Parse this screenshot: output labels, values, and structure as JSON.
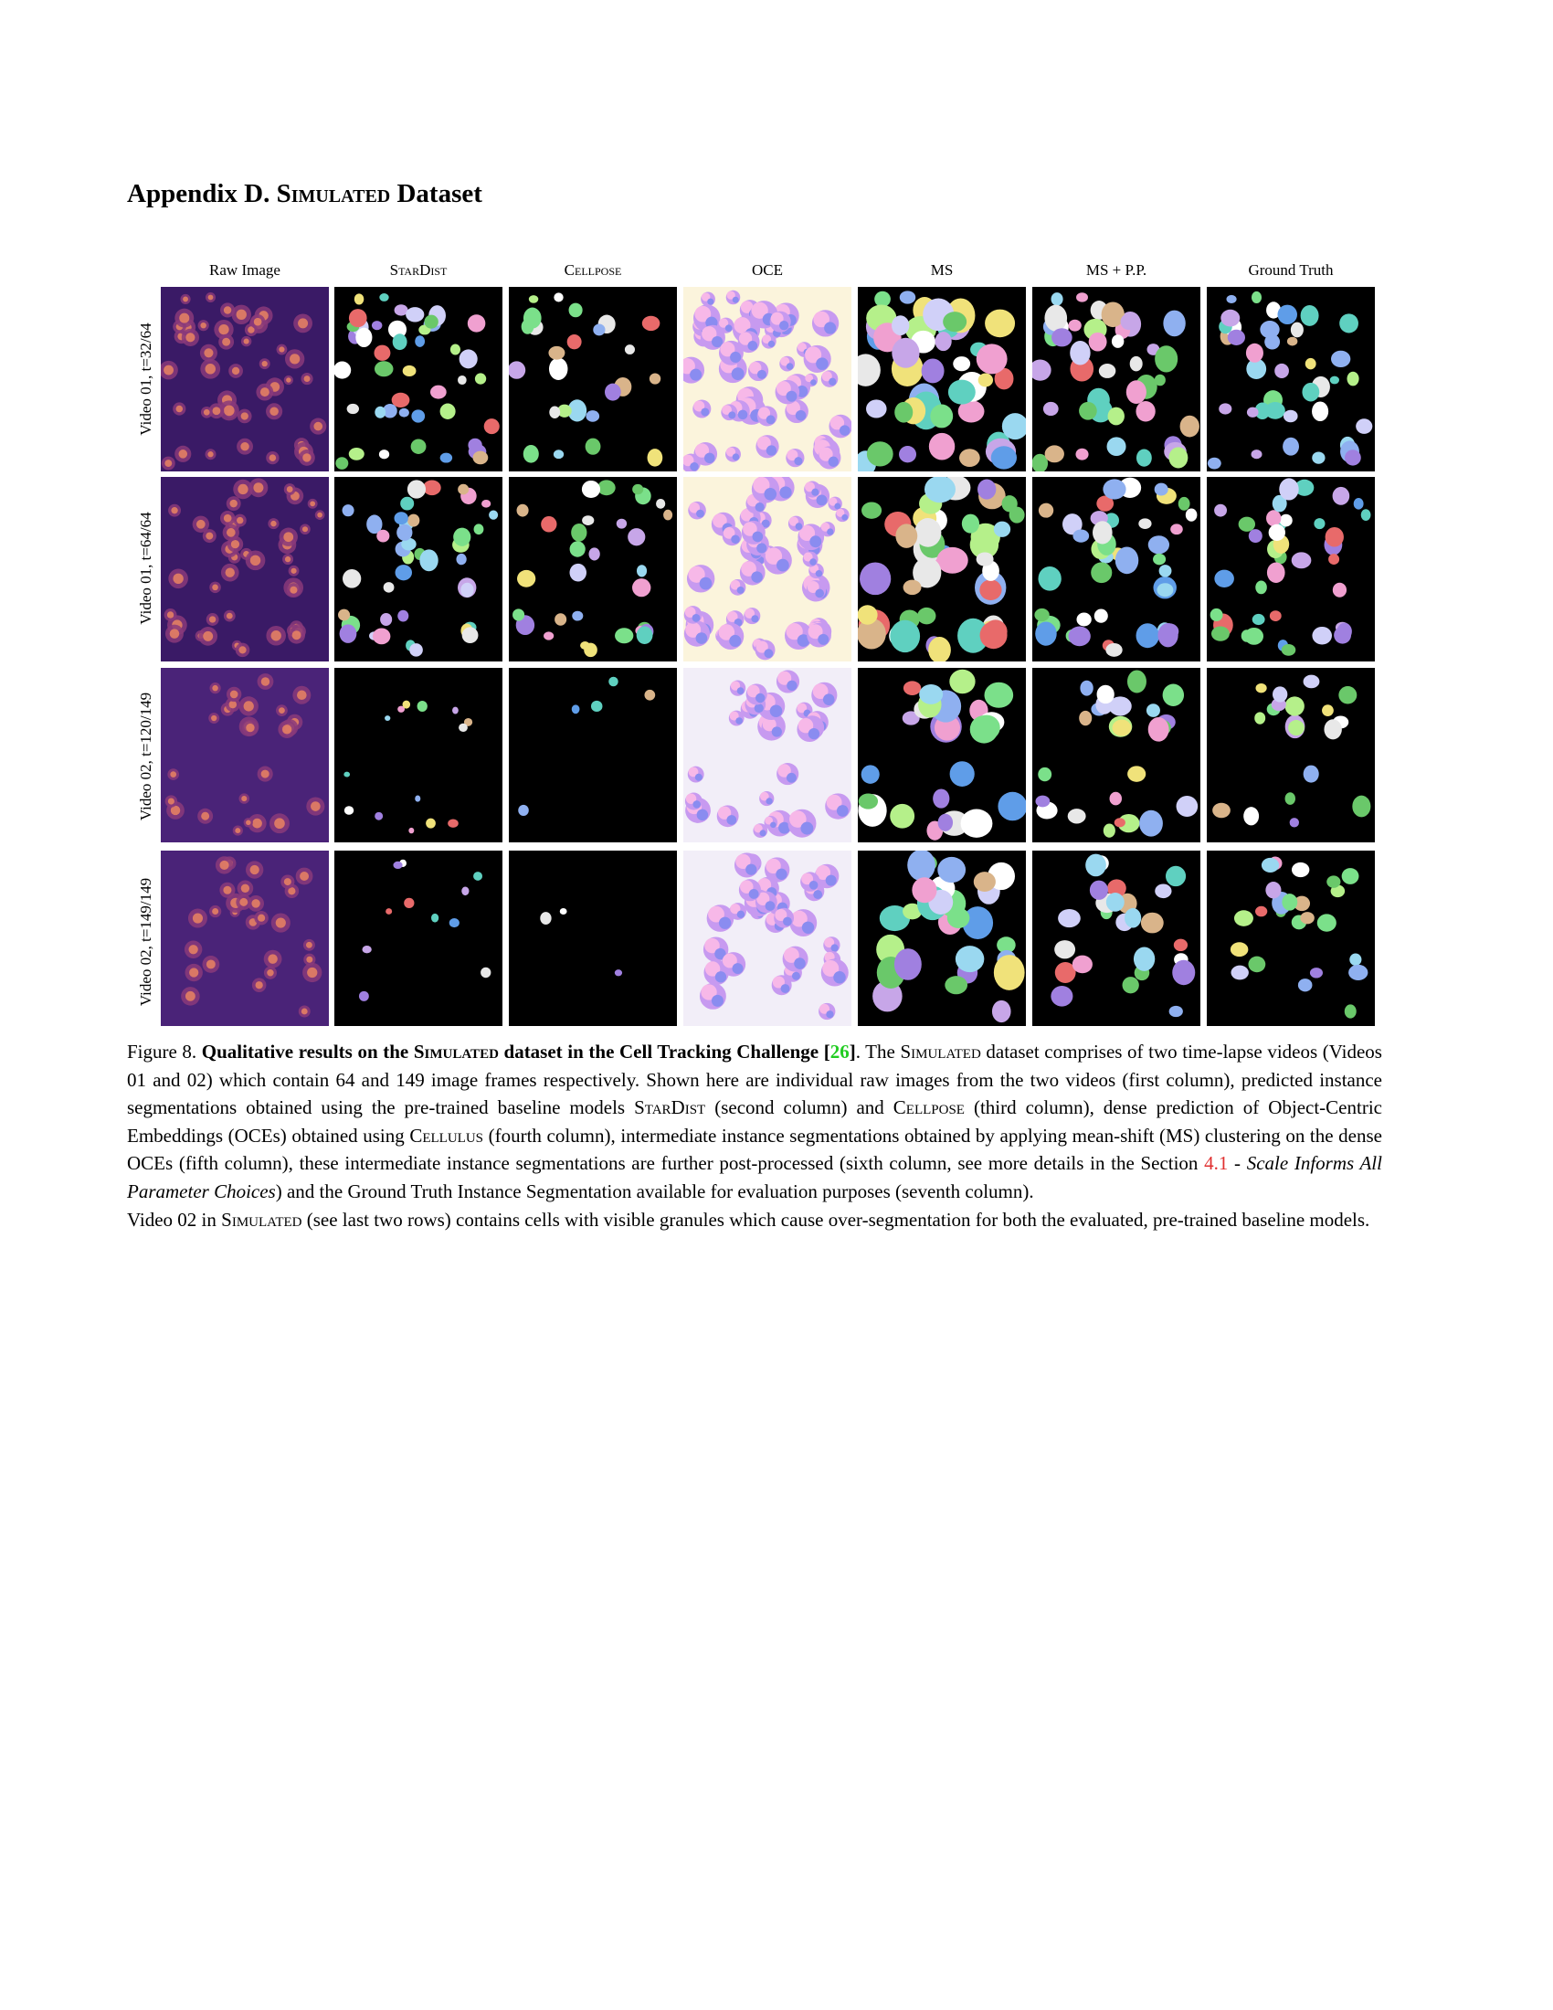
{
  "heading": {
    "prefix": "Appendix D.",
    "name": "Simulated",
    "suffix": "Dataset"
  },
  "figure": {
    "columns": [
      {
        "label": "Raw Image",
        "smallcaps": false,
        "type": "raw"
      },
      {
        "label": "StarDist",
        "smallcaps": true,
        "type": "mask"
      },
      {
        "label": "Cellpose",
        "smallcaps": true,
        "type": "mask"
      },
      {
        "label": "OCE",
        "smallcaps": false,
        "type": "oce"
      },
      {
        "label": "MS",
        "smallcaps": false,
        "type": "mask"
      },
      {
        "label": "MS + P.P.",
        "smallcaps": false,
        "type": "mask"
      },
      {
        "label": "Ground Truth",
        "smallcaps": false,
        "type": "mask"
      }
    ],
    "rows": [
      {
        "label": "Video 01, t=32/64"
      },
      {
        "label": "Video 01, t=64/64"
      },
      {
        "label": "Video 02, t=120/149"
      },
      {
        "label": "Video 02, t=149/149"
      }
    ]
  },
  "caption": {
    "fig_label": "Figure 8.",
    "bold_1": "Qualitative results on the ",
    "bold_sc": "Simulated",
    "bold_2": " dataset in the Cell Tracking Challenge [",
    "cite": "26",
    "bold_3": "]",
    "t1": ". The ",
    "sc1": "Simulated",
    "t2": " dataset comprises of two time-lapse videos (Videos 01 and 02) which contain 64 and 149 image frames respectively. Shown here are individual raw images from the two videos (first column), predicted instance segmentations obtained using the pre-trained baseline models ",
    "sc2": "StarDist",
    "t3": " (second column) and ",
    "sc3": "Cellpose",
    "t4": " (third column), dense prediction of Object-Centric Embeddings (OCEs) obtained using ",
    "sc4": "Cellulus",
    "t5": " (fourth column), intermediate instance segmentations obtained by applying mean-shift (MS) clustering on the dense OCEs (fifth column), these intermediate instance segmentations are further post-processed (sixth column, see more details in the Section ",
    "ref": "4.1",
    "t6": " - ",
    "italic": "Scale Informs All Parameter Choices",
    "t7": ") and the Ground Truth Instance Segmentation available for evaluation purposes (seventh column).",
    "p2_a": "Video 02 in ",
    "p2_sc": "Simulated",
    "p2_b": " (see last two rows) contains cells with visible granules which cause over-segmentation for both the evaluated, pre-trained baseline models."
  }
}
